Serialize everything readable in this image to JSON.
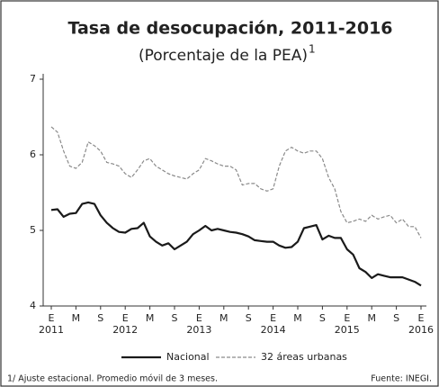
{
  "chart_data": {
    "type": "line",
    "title": "Tasa de desocupación, 2011-2016",
    "subtitle": "(Porcentaje de la PEA)",
    "subtitle_note": "1",
    "categories": [
      "E",
      null,
      null,
      null,
      "M",
      null,
      null,
      null,
      "S",
      null,
      null,
      null,
      "E",
      null,
      null,
      null,
      "M",
      null,
      null,
      null,
      "S",
      null,
      null,
      null,
      "E",
      null,
      null,
      null,
      "M",
      null,
      null,
      null,
      "S",
      null,
      null,
      null,
      "E",
      null,
      null,
      null,
      "M",
      null,
      null,
      null,
      "S",
      null,
      null,
      null,
      "E",
      null,
      null,
      null,
      "M",
      null,
      null,
      null,
      "S",
      null,
      null,
      null,
      "E"
    ],
    "year_labels": [
      "2011",
      "2012",
      "2013",
      "2014",
      "2015",
      "2016"
    ],
    "series": [
      {
        "name": "Nacional",
        "color": "#1a1a1a",
        "dashed": false,
        "values": [
          5.27,
          5.28,
          5.18,
          5.22,
          5.23,
          5.35,
          5.37,
          5.35,
          5.2,
          5.1,
          5.03,
          4.98,
          4.97,
          5.02,
          5.03,
          5.1,
          4.92,
          4.85,
          4.8,
          4.83,
          4.75,
          4.8,
          4.85,
          4.95,
          5.0,
          5.06,
          5.0,
          5.02,
          5.0,
          4.98,
          4.97,
          4.95,
          4.92,
          4.87,
          4.86,
          4.85,
          4.85,
          4.8,
          4.77,
          4.78,
          4.85,
          5.03,
          5.05,
          5.07,
          4.88,
          4.93,
          4.9,
          4.9,
          4.75,
          4.68,
          4.5,
          4.45,
          4.37,
          4.42,
          4.4,
          4.38,
          4.38,
          4.38,
          4.35,
          4.32,
          4.27
        ]
      },
      {
        "name": "32 áreas urbanas",
        "color": "#8a8a8a",
        "dashed": true,
        "values": [
          6.37,
          6.3,
          6.05,
          5.85,
          5.82,
          5.9,
          6.17,
          6.12,
          6.05,
          5.9,
          5.88,
          5.85,
          5.75,
          5.7,
          5.8,
          5.92,
          5.95,
          5.85,
          5.8,
          5.75,
          5.72,
          5.7,
          5.68,
          5.75,
          5.8,
          5.95,
          5.92,
          5.88,
          5.85,
          5.85,
          5.8,
          5.6,
          5.62,
          5.62,
          5.55,
          5.52,
          5.55,
          5.85,
          6.05,
          6.1,
          6.05,
          6.02,
          6.05,
          6.05,
          5.95,
          5.7,
          5.55,
          5.25,
          5.1,
          5.12,
          5.15,
          5.12,
          5.2,
          5.15,
          5.18,
          5.2,
          5.1,
          5.15,
          5.05,
          5.05,
          4.9
        ]
      }
    ],
    "ylim": [
      4,
      7
    ],
    "yticks": [
      4,
      5,
      6,
      7
    ],
    "footnote": "1/ Ajuste estacional. Promedio móvil de 3 meses.",
    "source": "Fuente: INEGI."
  }
}
